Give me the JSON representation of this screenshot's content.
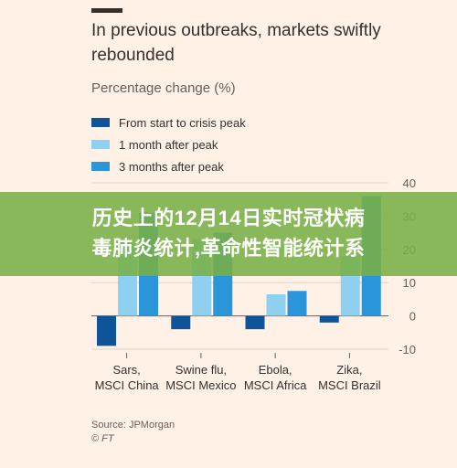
{
  "title": "In previous outbreaks, markets swiftly rebounded",
  "subtitle": "Percentage change (%)",
  "legend": [
    {
      "label": "From start to crisis peak",
      "color": "#0f5499"
    },
    {
      "label": "1 month after peak",
      "color": "#8fd0f0"
    },
    {
      "label": "3 months after peak",
      "color": "#2a95d8"
    }
  ],
  "overlay": {
    "text": "历史上的12月14日实时冠状病\n毒肺炎统计,革命性智能统计系"
  },
  "source": "Source: JPMorgan",
  "credit": "© FT",
  "chart_data": {
    "type": "bar",
    "title": "In previous outbreaks, markets swiftly rebounded",
    "ylabel": "Percentage change (%)",
    "categories": [
      "Sars,\nMSCI China",
      "Swine flu,\nMSCI Mexico",
      "Ebola,\nMSCI Africa",
      "Zika,\nMSCI Brazil"
    ],
    "series": [
      {
        "name": "From start to crisis peak",
        "values": [
          -9,
          -4,
          -4,
          -2
        ]
      },
      {
        "name": "1 month after peak",
        "values": [
          22,
          23,
          6.5,
          18
        ]
      },
      {
        "name": "3 months after peak",
        "values": [
          31,
          25,
          7.5,
          36
        ]
      }
    ],
    "ylim": [
      -10,
      40
    ],
    "yticks": [
      -10,
      0,
      10,
      20,
      30,
      40
    ],
    "grid": true,
    "legend_position": "top-left"
  }
}
